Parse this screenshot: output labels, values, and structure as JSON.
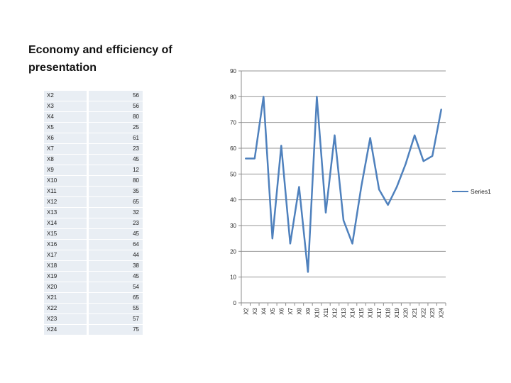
{
  "slide": {
    "title": "Economy and efficiency of presentation"
  },
  "table": {
    "rows": [
      [
        "X2",
        "56"
      ],
      [
        "X3",
        "56"
      ],
      [
        "X4",
        "80"
      ],
      [
        "X5",
        "25"
      ],
      [
        "X6",
        "61"
      ],
      [
        "X7",
        "23"
      ],
      [
        "X8",
        "45"
      ],
      [
        "X9",
        "12"
      ],
      [
        "X10",
        "80"
      ],
      [
        "X11",
        "35"
      ],
      [
        "X12",
        "65"
      ],
      [
        "X13",
        "32"
      ],
      [
        "X14",
        "23"
      ],
      [
        "X15",
        "45"
      ],
      [
        "X16",
        "64"
      ],
      [
        "X17",
        "44"
      ],
      [
        "X18",
        "38"
      ],
      [
        "X19",
        "45"
      ],
      [
        "X20",
        "54"
      ],
      [
        "X21",
        "65"
      ],
      [
        "X22",
        "55"
      ],
      [
        "X23",
        "57"
      ],
      [
        "X24",
        "75"
      ]
    ]
  },
  "chart_data": {
    "type": "line",
    "categories": [
      "X2",
      "X3",
      "X4",
      "X5",
      "X6",
      "X7",
      "X8",
      "X9",
      "X10",
      "X11",
      "X12",
      "X13",
      "X14",
      "X15",
      "X16",
      "X17",
      "X18",
      "X19",
      "X20",
      "X21",
      "X22",
      "X23",
      "X24"
    ],
    "series": [
      {
        "name": "Series1",
        "values": [
          56,
          56,
          80,
          25,
          61,
          23,
          45,
          12,
          80,
          35,
          65,
          32,
          23,
          45,
          64,
          44,
          38,
          45,
          54,
          65,
          55,
          57,
          75
        ]
      }
    ],
    "title": "",
    "xlabel": "",
    "ylabel": "",
    "ylim": [
      0,
      90
    ],
    "ytick_step": 10,
    "grid": true,
    "legend_position": "right",
    "colors": {
      "line": "#4f81bd",
      "grid": "#969696",
      "axis": "#8c8c8c",
      "tick_text": "#262626",
      "table_cell": "#e9eef4"
    }
  }
}
